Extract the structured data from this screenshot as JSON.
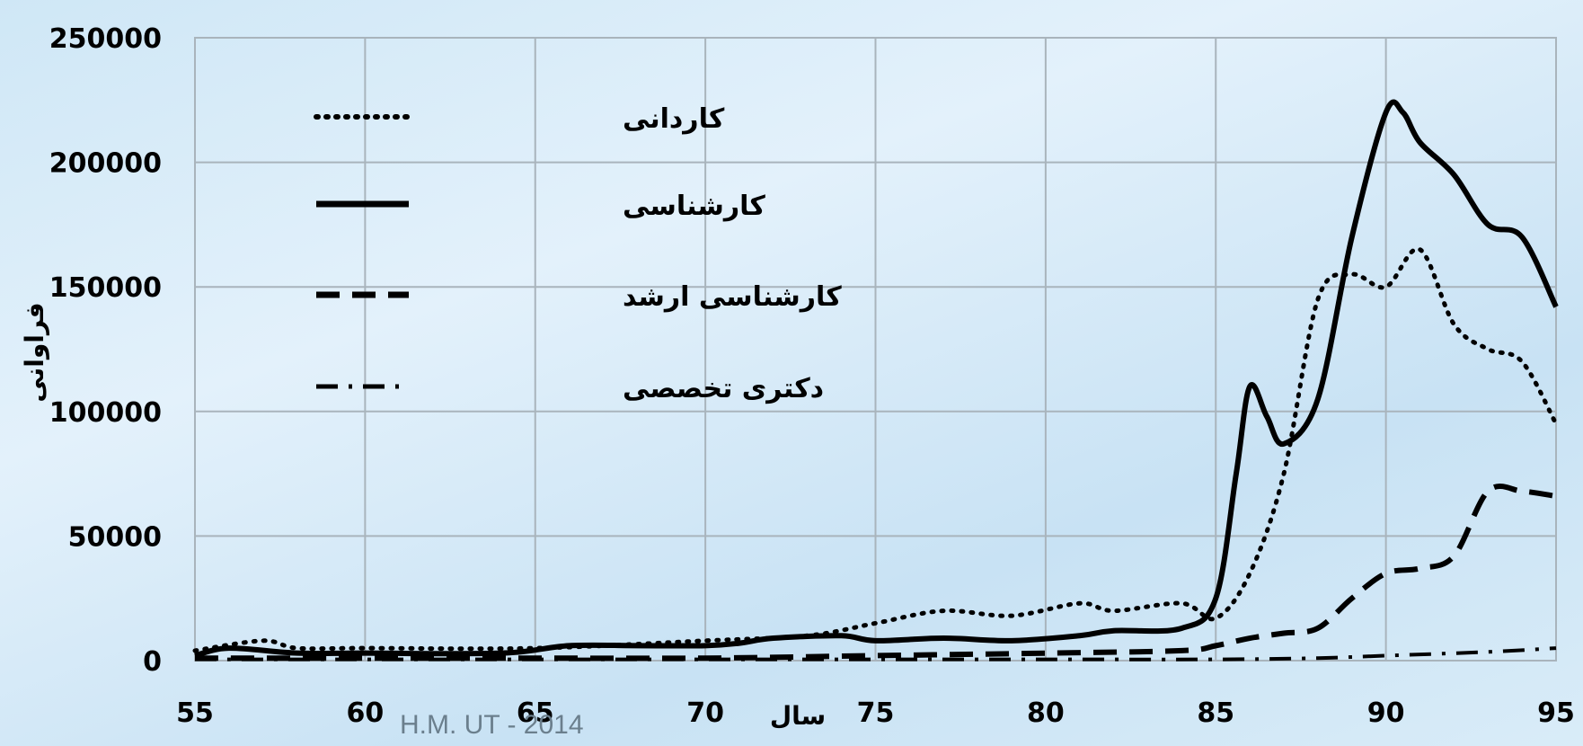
{
  "chart_data": {
    "type": "line",
    "title": "",
    "xlabel": "سال",
    "ylabel": "فراوانی",
    "xlim": [
      55,
      95
    ],
    "ylim": [
      0,
      250000
    ],
    "x_ticks": [
      55,
      60,
      65,
      70,
      75,
      80,
      85,
      90,
      95
    ],
    "y_ticks": [
      0,
      50000,
      100000,
      150000,
      200000,
      250000
    ],
    "grid": true,
    "legend_position": "top-left",
    "series": [
      {
        "name": "کاردانی",
        "style": "dotted",
        "color": "#000000",
        "points": [
          [
            55,
            4000
          ],
          [
            57,
            8000
          ],
          [
            58,
            5000
          ],
          [
            60,
            5000
          ],
          [
            65,
            5000
          ],
          [
            70,
            8000
          ],
          [
            73,
            10000
          ],
          [
            75,
            15000
          ],
          [
            77,
            20000
          ],
          [
            79,
            18000
          ],
          [
            81,
            23000
          ],
          [
            82,
            20000
          ],
          [
            84,
            23000
          ],
          [
            85,
            17000
          ],
          [
            86,
            35000
          ],
          [
            87,
            75000
          ],
          [
            88,
            145000
          ],
          [
            89,
            155000
          ],
          [
            90,
            150000
          ],
          [
            91,
            165000
          ],
          [
            92,
            135000
          ],
          [
            93,
            125000
          ],
          [
            94,
            120000
          ],
          [
            95,
            95000
          ]
        ]
      },
      {
        "name": "کارشناسی",
        "style": "solid",
        "color": "#000000",
        "points": [
          [
            55,
            2000
          ],
          [
            56,
            5000
          ],
          [
            58,
            3000
          ],
          [
            60,
            3000
          ],
          [
            64,
            3000
          ],
          [
            66,
            6000
          ],
          [
            68,
            6000
          ],
          [
            70,
            6000
          ],
          [
            71,
            7000
          ],
          [
            72,
            9000
          ],
          [
            74,
            10000
          ],
          [
            75,
            8000
          ],
          [
            77,
            9000
          ],
          [
            79,
            8000
          ],
          [
            81,
            10000
          ],
          [
            82,
            12000
          ],
          [
            84,
            13000
          ],
          [
            85,
            25000
          ],
          [
            85.6,
            75000
          ],
          [
            86,
            110000
          ],
          [
            86.5,
            98000
          ],
          [
            87,
            87000
          ],
          [
            88,
            105000
          ],
          [
            89,
            170000
          ],
          [
            90,
            220000
          ],
          [
            90.5,
            220000
          ],
          [
            91,
            208000
          ],
          [
            92,
            195000
          ],
          [
            93,
            175000
          ],
          [
            94,
            170000
          ],
          [
            95,
            142000
          ]
        ]
      },
      {
        "name": "کارشناسی ارشد",
        "style": "dashed",
        "color": "#000000",
        "points": [
          [
            55,
            1000
          ],
          [
            60,
            1000
          ],
          [
            65,
            1000
          ],
          [
            70,
            1000
          ],
          [
            75,
            2000
          ],
          [
            80,
            3000
          ],
          [
            84,
            4000
          ],
          [
            85,
            6000
          ],
          [
            86,
            9000
          ],
          [
            87,
            11000
          ],
          [
            88,
            13000
          ],
          [
            89,
            25000
          ],
          [
            90,
            35000
          ],
          [
            91,
            37000
          ],
          [
            92,
            42000
          ],
          [
            93,
            68000
          ],
          [
            94,
            68000
          ],
          [
            95,
            66000
          ]
        ]
      },
      {
        "name": "دکتری تخصصی",
        "style": "dashdot",
        "color": "#000000",
        "points": [
          [
            55,
            500
          ],
          [
            60,
            500
          ],
          [
            65,
            500
          ],
          [
            70,
            500
          ],
          [
            75,
            500
          ],
          [
            80,
            500
          ],
          [
            85,
            500
          ],
          [
            88,
            1000
          ],
          [
            90,
            2000
          ],
          [
            93,
            3500
          ],
          [
            95,
            5000
          ]
        ]
      }
    ]
  },
  "watermark": "H.M. UT - 2014"
}
